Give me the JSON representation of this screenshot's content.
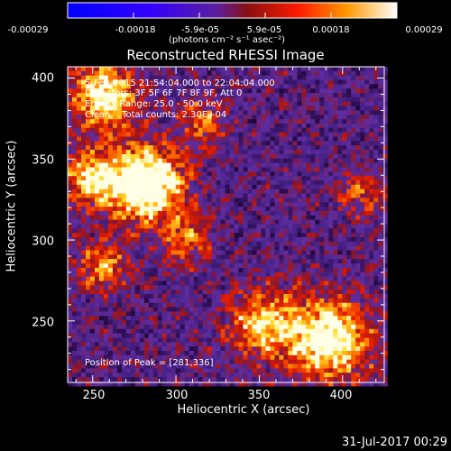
{
  "colorbar": {
    "ticks": [
      "-0.00029",
      "-0.00018",
      "-5.9e-05",
      "5.9e-05",
      "0.00018",
      "0.00029"
    ],
    "units": "(photons cm⁻² s⁻¹ asec⁻²)"
  },
  "plot": {
    "title": "Reconstructed RHESSI Image",
    "xlabel": "Heliocentric X (arcsec)",
    "ylabel": "Heliocentric Y (arcsec)",
    "xticks": [
      "250",
      "300",
      "350",
      "400"
    ],
    "yticks": [
      "400",
      "350",
      "300",
      "250"
    ]
  },
  "annotations": {
    "time": "5-Feb-2015 21:54:04.000 to 22:04:04.000",
    "detectors": "Detectors: 3F 5F 6F 7F 8F 9F, Att 0",
    "energy": "Energy Range: 25.0 - 50.0 keV",
    "clean": "Clean    Total counts: 2.30E+04",
    "peak": "Position of Peak = [281,336]"
  },
  "footer": {
    "date": "31-Jul-2017 00:29"
  },
  "chart_data": {
    "type": "heatmap",
    "title": "Reconstructed RHESSI Image",
    "xlabel": "Heliocentric X (arcsec)",
    "ylabel": "Heliocentric Y (arcsec)",
    "xlim": [
      235,
      425
    ],
    "ylim": [
      212,
      407
    ],
    "zlim": [
      -0.00029,
      0.00029
    ],
    "peak": [
      281,
      336
    ],
    "colormap": "black-purple-red-orange-yellow-white",
    "hotspots": [
      {
        "x": 281,
        "y": 336,
        "amplitude": 0.00029,
        "sigma": 16
      },
      {
        "x": 255,
        "y": 390,
        "amplitude": 0.00022,
        "sigma": 14
      },
      {
        "x": 248,
        "y": 340,
        "amplitude": 0.00018,
        "sigma": 12
      },
      {
        "x": 390,
        "y": 240,
        "amplitude": 0.00024,
        "sigma": 18
      },
      {
        "x": 350,
        "y": 250,
        "amplitude": 0.00018,
        "sigma": 14
      },
      {
        "x": 255,
        "y": 285,
        "amplitude": 0.00014,
        "sigma": 11
      },
      {
        "x": 305,
        "y": 300,
        "amplitude": 0.00012,
        "sigma": 10
      },
      {
        "x": 315,
        "y": 375,
        "amplitude": 0.00012,
        "sigma": 10
      },
      {
        "x": 410,
        "y": 330,
        "amplitude": 0.0001,
        "sigma": 10
      }
    ]
  }
}
